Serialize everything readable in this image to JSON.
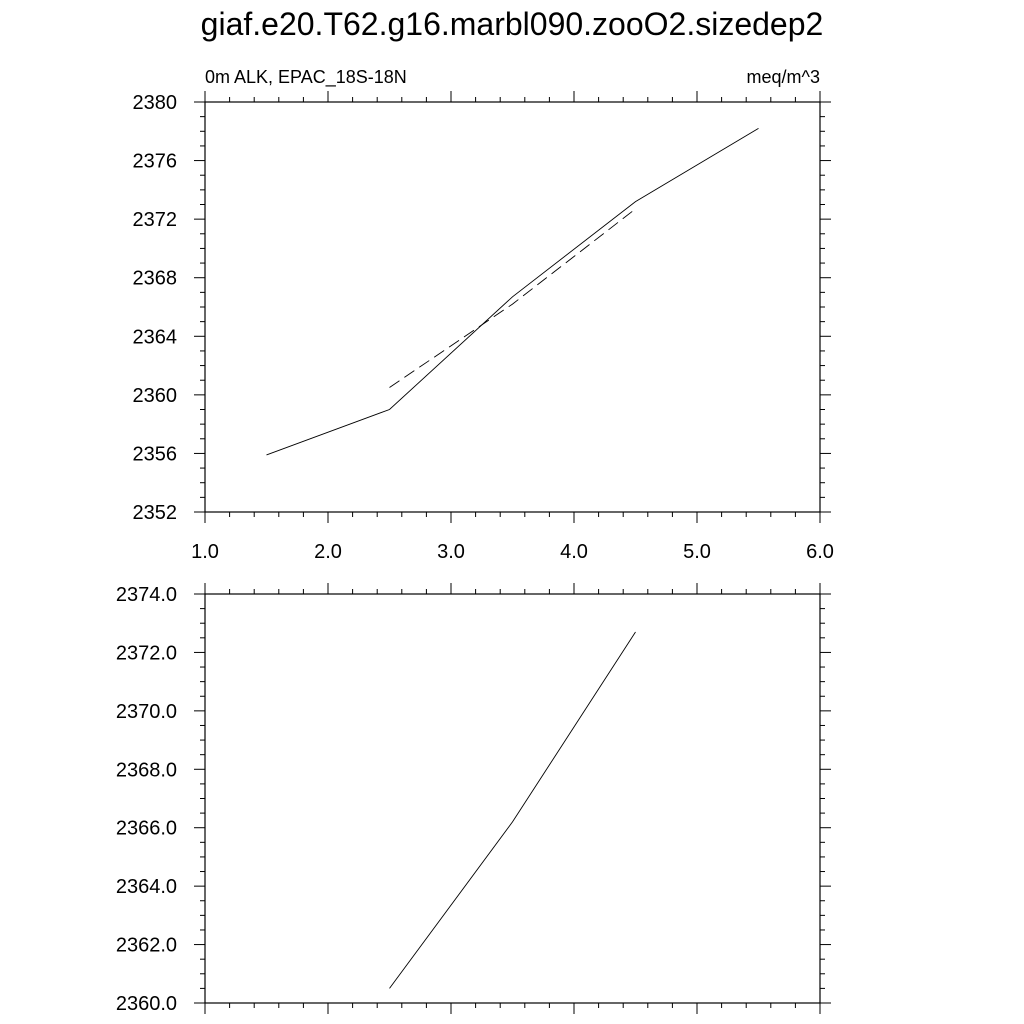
{
  "title": "giaf.e20.T62.g16.marbl090.zooO2.sizedep2",
  "chart_data": [
    {
      "type": "line",
      "left_label": "0m ALK, EPAC_18S-18N",
      "right_label": "meq/m^3",
      "xlim": [
        1.0,
        6.0
      ],
      "ylim": [
        2352,
        2380
      ],
      "x_ticks": [
        "1.0",
        "2.0",
        "3.0",
        "4.0",
        "5.0",
        "6.0"
      ],
      "y_ticks": [
        "2352",
        "2356",
        "2360",
        "2364",
        "2368",
        "2372",
        "2376",
        "2380"
      ],
      "series": [
        {
          "style": "solid",
          "x": [
            1.5,
            2.5,
            3.5,
            4.5,
            5.5
          ],
          "y": [
            2355.9,
            2359.0,
            2366.7,
            2373.2,
            2378.2
          ]
        },
        {
          "style": "dashed",
          "x": [
            2.5,
            3.5,
            4.5
          ],
          "y": [
            2360.5,
            2366.2,
            2372.7
          ]
        }
      ]
    },
    {
      "type": "line",
      "xlim": [
        1.0,
        6.0
      ],
      "ylim": [
        2360.0,
        2374.0
      ],
      "y_ticks": [
        "2360.0",
        "2362.0",
        "2364.0",
        "2366.0",
        "2368.0",
        "2370.0",
        "2372.0",
        "2374.0"
      ],
      "series": [
        {
          "style": "solid",
          "x": [
            2.5,
            3.5,
            4.5
          ],
          "y": [
            2360.5,
            2366.2,
            2372.7
          ]
        }
      ]
    }
  ]
}
